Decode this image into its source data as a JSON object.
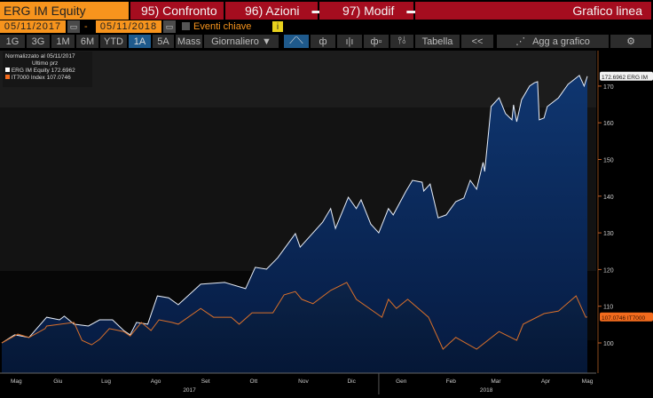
{
  "header": {
    "security": "ERG IM Equity",
    "compare": "95) Confronto",
    "actions": "96) Azioni",
    "edit": "97) Modif",
    "chart_type": "Grafico linea"
  },
  "dates": {
    "start": "05/11/2017",
    "end": "05/11/2018",
    "separator": "-",
    "key_events": "Eventi chiave",
    "info": "i"
  },
  "periods": [
    "1G",
    "3G",
    "1M",
    "6M",
    "YTD",
    "1A",
    "5A",
    "Mass"
  ],
  "selected_period": "1A",
  "frequency": "Giornaliero ▼",
  "toolbar": {
    "table": "Tabella",
    "collapse": "<<",
    "add_to_chart": "Agg a grafico",
    "settings": "⚙"
  },
  "legend": {
    "title": "Normalizzato al 05/11/2017",
    "subtitle": "Ultimo prz",
    "items": [
      {
        "name": "ERG IM Equity",
        "value": "172.6962",
        "color": "#ffffff"
      },
      {
        "name": "IT7000 Index",
        "value": "107.0746",
        "color": "#f26b1d"
      }
    ]
  },
  "chart_data": {
    "type": "area",
    "x_unit": "days since 05/11/2017",
    "ylim": [
      92,
      176
    ],
    "yticks": [
      100,
      110,
      120,
      130,
      140,
      150,
      160,
      170
    ],
    "xticks": [
      {
        "label": "Mag",
        "day": 9
      },
      {
        "label": "Giu",
        "day": 35
      },
      {
        "label": "Lug",
        "day": 65
      },
      {
        "label": "Ago",
        "day": 96
      },
      {
        "label": "Set",
        "day": 127
      },
      {
        "label": "Ott",
        "day": 157
      },
      {
        "label": "Nov",
        "day": 188
      },
      {
        "label": "Dic",
        "day": 218
      },
      {
        "label": "Gen",
        "day": 249
      },
      {
        "label": "Feb",
        "day": 280
      },
      {
        "label": "Mar",
        "day": 308
      },
      {
        "label": "Apr",
        "day": 339
      },
      {
        "label": "Mag",
        "day": 365
      }
    ],
    "years": [
      {
        "label": "2017",
        "day": 117
      },
      {
        "label": "2018",
        "day": 302
      }
    ],
    "series": [
      {
        "name": "ERG IM Equity",
        "last_label": "172.6962 ERG IM",
        "color": "#e8eef8",
        "points": [
          [
            0,
            100
          ],
          [
            8,
            102.2
          ],
          [
            17,
            101.5
          ],
          [
            28,
            107
          ],
          [
            36,
            106.3
          ],
          [
            39,
            107.3
          ],
          [
            45,
            105.1
          ],
          [
            54,
            104.6
          ],
          [
            61,
            106.3
          ],
          [
            69,
            106.3
          ],
          [
            76,
            103.4
          ],
          [
            80,
            102.2
          ],
          [
            84,
            105.6
          ],
          [
            91,
            105.1
          ],
          [
            97,
            112.8
          ],
          [
            104,
            112.3
          ],
          [
            110,
            110.4
          ],
          [
            124,
            116
          ],
          [
            139,
            116.5
          ],
          [
            152,
            114.8
          ],
          [
            158,
            120.6
          ],
          [
            165,
            120.1
          ],
          [
            172,
            123.2
          ],
          [
            183,
            129.8
          ],
          [
            186,
            126.1
          ],
          [
            200,
            132.9
          ],
          [
            205,
            136.6
          ],
          [
            208,
            131.2
          ],
          [
            216,
            139.7
          ],
          [
            221,
            136.6
          ],
          [
            224,
            139
          ],
          [
            230,
            132.4
          ],
          [
            235,
            130
          ],
          [
            241,
            136.6
          ],
          [
            244,
            134.9
          ],
          [
            252,
            141.4
          ],
          [
            256,
            144.3
          ],
          [
            262,
            143.8
          ],
          [
            263,
            141.4
          ],
          [
            267,
            143.3
          ],
          [
            272,
            134.1
          ],
          [
            277,
            134.9
          ],
          [
            283,
            138.5
          ],
          [
            288,
            139.5
          ],
          [
            292,
            144.3
          ],
          [
            296,
            141.9
          ],
          [
            300,
            149.2
          ],
          [
            301,
            146.7
          ],
          [
            305,
            164.4
          ],
          [
            310,
            166.8
          ],
          [
            314,
            162.5
          ],
          [
            318,
            160.8
          ],
          [
            319,
            164.9
          ],
          [
            321,
            160.3
          ],
          [
            324,
            166.3
          ],
          [
            329,
            170
          ],
          [
            332,
            170.9
          ],
          [
            334,
            171.2
          ],
          [
            335,
            160.8
          ],
          [
            338,
            161.3
          ],
          [
            340,
            164.4
          ],
          [
            347,
            166.8
          ],
          [
            353,
            170.5
          ],
          [
            360,
            172.9
          ],
          [
            363,
            170
          ],
          [
            365,
            172.6962
          ]
        ]
      },
      {
        "name": "IT7000 Index",
        "last_label": "107.0746 IT7000",
        "color": "#d9702a",
        "points": [
          [
            0,
            100
          ],
          [
            10,
            102.4
          ],
          [
            17,
            101.5
          ],
          [
            27,
            103.9
          ],
          [
            28,
            104.6
          ],
          [
            45,
            105.6
          ],
          [
            50,
            100.7
          ],
          [
            56,
            99.5
          ],
          [
            61,
            101
          ],
          [
            67,
            103.9
          ],
          [
            76,
            103.1
          ],
          [
            80,
            101.9
          ],
          [
            87,
            105.6
          ],
          [
            93,
            103.4
          ],
          [
            98,
            106.3
          ],
          [
            106,
            105.6
          ],
          [
            110,
            105.1
          ],
          [
            124,
            109.4
          ],
          [
            132,
            107
          ],
          [
            143,
            107
          ],
          [
            148,
            105.1
          ],
          [
            156,
            108.2
          ],
          [
            169,
            108.2
          ],
          [
            176,
            113.1
          ],
          [
            183,
            114
          ],
          [
            187,
            111.9
          ],
          [
            194,
            110.7
          ],
          [
            205,
            114.3
          ],
          [
            215,
            116.5
          ],
          [
            221,
            111.9
          ],
          [
            237,
            107
          ],
          [
            241,
            111.9
          ],
          [
            246,
            109.4
          ],
          [
            253,
            111.9
          ],
          [
            266,
            107
          ],
          [
            275,
            98.3
          ],
          [
            283,
            101.5
          ],
          [
            296,
            98.3
          ],
          [
            310,
            103.1
          ],
          [
            321,
            100.7
          ],
          [
            325,
            105.1
          ],
          [
            338,
            108
          ],
          [
            347,
            108.7
          ],
          [
            358,
            112.8
          ],
          [
            364,
            107
          ],
          [
            365,
            107.0746
          ]
        ]
      }
    ]
  }
}
